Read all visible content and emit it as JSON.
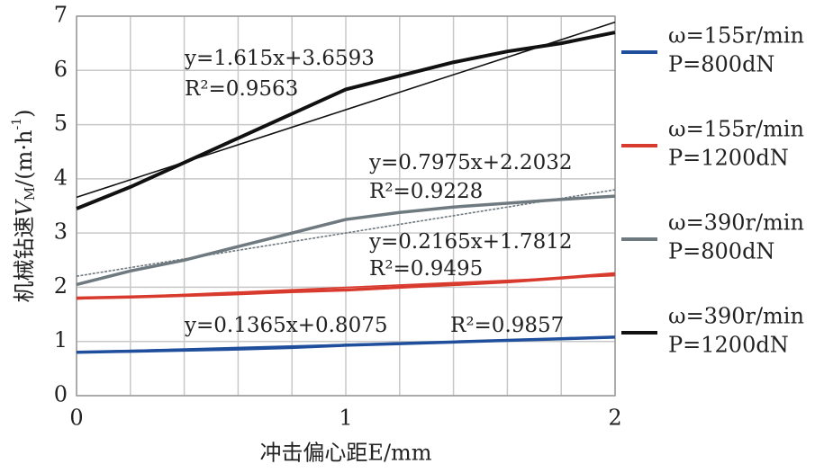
{
  "chart_data": {
    "type": "line",
    "x_label": "冲击偏心距E/mm",
    "y_label": [
      "机械钻速",
      "V",
      "M",
      "/(m·h",
      "-1",
      ")"
    ],
    "x": [
      0,
      0.2,
      0.4,
      0.6,
      0.8,
      1.0,
      1.2,
      1.4,
      1.6,
      1.8,
      2.0
    ],
    "series": [
      {
        "name": [
          "ω=155r/min",
          "P=800dN"
        ],
        "color": "#1f4e9c",
        "values": [
          0.8,
          0.82,
          0.84,
          0.86,
          0.89,
          0.93,
          0.96,
          0.99,
          1.02,
          1.05,
          1.08
        ],
        "fit": {
          "slope": 0.1365,
          "intercept": 0.8075,
          "equation": "y=0.1365x+0.8075",
          "r2": "R²=0.9857"
        }
      },
      {
        "name": [
          "ω=155r/min",
          "P=1200dN"
        ],
        "color": "#d93a2e",
        "values": [
          1.8,
          1.82,
          1.85,
          1.88,
          1.92,
          1.95,
          2.0,
          2.05,
          2.1,
          2.17,
          2.25
        ],
        "fit": {
          "slope": 0.2165,
          "intercept": 1.7812,
          "equation": "y=0.2165x+1.7812",
          "r2": "R²=0.9495"
        }
      },
      {
        "name": [
          "ω=390r/min",
          "P=800dN"
        ],
        "color": "#6f7a80",
        "values": [
          2.05,
          2.3,
          2.5,
          2.75,
          3.0,
          3.25,
          3.38,
          3.48,
          3.55,
          3.62,
          3.68
        ],
        "fit": {
          "slope": 0.7975,
          "intercept": 2.2032,
          "equation": "y=0.7975x+2.2032",
          "r2": "R²=0.9228"
        }
      },
      {
        "name": [
          "ω=390r/min",
          "P=1200dN"
        ],
        "color": "#111111",
        "values": [
          3.45,
          3.85,
          4.3,
          4.75,
          5.2,
          5.65,
          5.9,
          6.15,
          6.35,
          6.5,
          6.7
        ],
        "fit": {
          "slope": 1.615,
          "intercept": 3.6593,
          "equation": "y=1.615x+3.6593",
          "r2": "R²=0.9563"
        }
      }
    ],
    "xlim": [
      0,
      2
    ],
    "ylim": [
      0,
      7
    ],
    "xticks": [
      0,
      1,
      2
    ],
    "yticks": [
      0,
      1,
      2,
      3,
      4,
      5,
      6,
      7
    ],
    "xgrid": [
      0.2,
      0.4,
      0.6,
      0.8,
      1.2,
      1.4,
      1.6,
      1.8
    ],
    "grid": true
  }
}
